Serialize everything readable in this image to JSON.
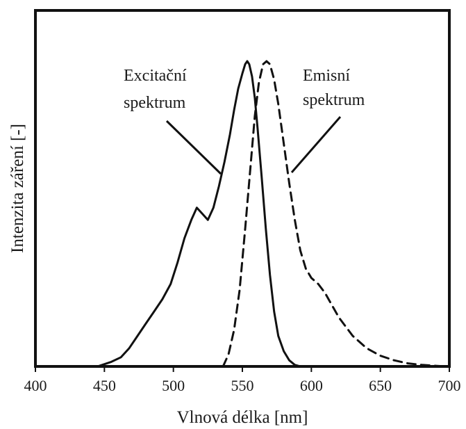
{
  "chart_data": {
    "type": "line",
    "xlabel": "Vlnová délka [nm]",
    "ylabel": "Intenzita záření [-]",
    "xlim": [
      400,
      700
    ],
    "ylim": [
      0,
      1.0
    ],
    "x_ticks": [
      "400",
      "450",
      "500",
      "550",
      "600",
      "650",
      "700"
    ],
    "y_ticks": [],
    "grid": false,
    "legend": "none",
    "colors": {
      "line": "#111111",
      "frame": "#111111"
    },
    "series": [
      {
        "label_lines": [
          "Excitační",
          "spektrum"
        ],
        "style": "solid",
        "x": [
          445,
          455,
          462,
          468,
          474,
          480,
          486,
          492,
          498,
          503,
          508,
          513,
          517,
          521,
          525,
          529,
          533,
          537,
          541,
          544,
          547,
          550,
          552,
          553.5,
          555,
          557,
          559,
          561,
          564,
          567,
          570,
          573,
          576,
          580,
          584,
          588,
          592
        ],
        "y": [
          0.0,
          0.015,
          0.03,
          0.06,
          0.1,
          0.14,
          0.18,
          0.22,
          0.27,
          0.34,
          0.42,
          0.48,
          0.52,
          0.5,
          0.48,
          0.52,
          0.59,
          0.67,
          0.76,
          0.84,
          0.91,
          0.96,
          0.99,
          1.0,
          0.99,
          0.95,
          0.88,
          0.78,
          0.62,
          0.45,
          0.3,
          0.18,
          0.1,
          0.05,
          0.02,
          0.005,
          0.0
        ]
      },
      {
        "label_lines": [
          "Emisní",
          "spektrum"
        ],
        "style": "dashed",
        "x": [
          536,
          540,
          544,
          548,
          552,
          556,
          559,
          562,
          565,
          567.5,
          570,
          573,
          576,
          580,
          584,
          588,
          592,
          596,
          600,
          605,
          610,
          615,
          620,
          630,
          640,
          650,
          660,
          670,
          680,
          690,
          698
        ],
        "y": [
          0.0,
          0.04,
          0.12,
          0.25,
          0.45,
          0.66,
          0.82,
          0.93,
          0.99,
          1.0,
          0.99,
          0.94,
          0.86,
          0.73,
          0.6,
          0.48,
          0.38,
          0.32,
          0.29,
          0.27,
          0.24,
          0.2,
          0.16,
          0.1,
          0.06,
          0.035,
          0.02,
          0.01,
          0.005,
          0.002,
          0.0
        ]
      }
    ]
  }
}
